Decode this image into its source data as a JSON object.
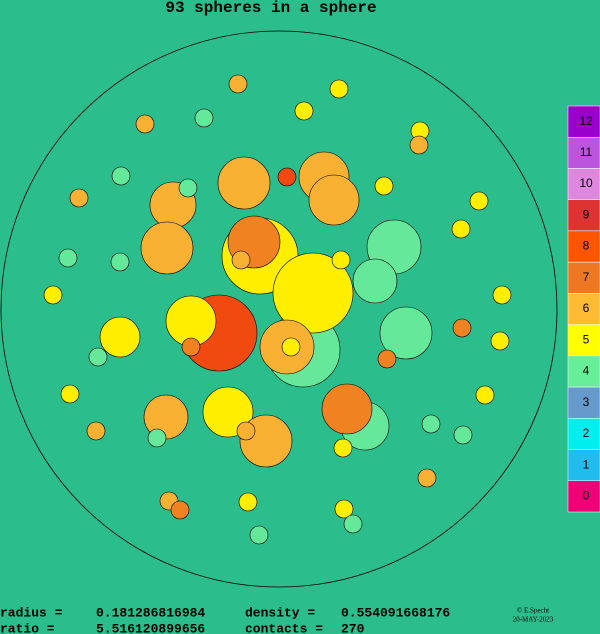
{
  "header": {
    "title": "93 spheres in a sphere"
  },
  "legend": {
    "labels": [
      "12",
      "11",
      "10",
      "9",
      "8",
      "7",
      "6",
      "5",
      "4",
      "3",
      "2",
      "1",
      "0"
    ],
    "colors": [
      "#9900cc",
      "#bb55dd",
      "#dd88dd",
      "#dd3333",
      "#ff5500",
      "#ee7722",
      "#ffbb33",
      "#ffff00",
      "#66ee99",
      "#6699cc",
      "#00eeee",
      "#22bbee",
      "#ee0077"
    ]
  },
  "footer": {
    "radius_label": "radius =",
    "radius": "0.181286816984",
    "density_label": "density =",
    "density": "0.554091668176",
    "ratio_label": "ratio =",
    "ratio": "5.516120899656",
    "contacts_label": "contacts =",
    "contacts": "270",
    "credit": "© E.Specht",
    "date": "20-MAY-2023"
  }
}
